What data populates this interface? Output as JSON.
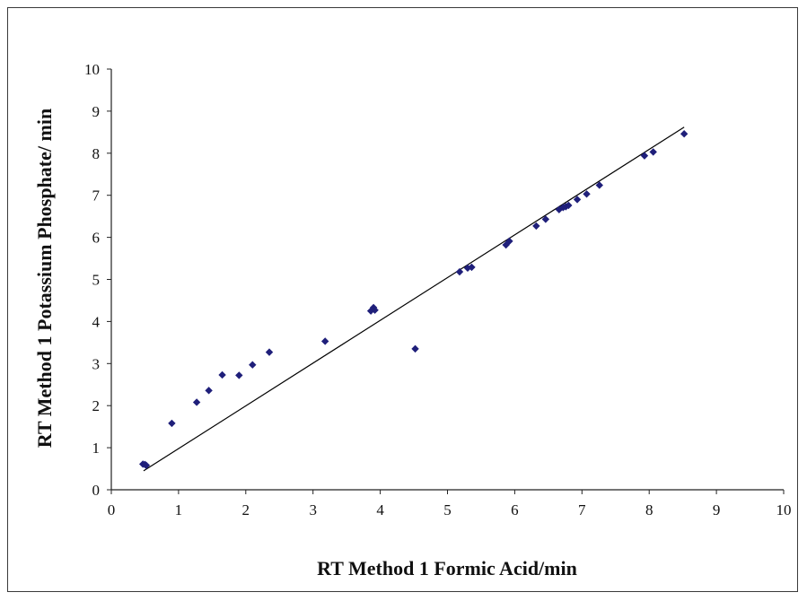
{
  "chart_data": {
    "type": "scatter",
    "xlabel": "RT Method 1 Formic Acid/min",
    "ylabel": "RT Method 1 Potassium Phosphate/ min",
    "xlim": [
      0,
      10
    ],
    "ylim": [
      0,
      10
    ],
    "xticks": [
      "0",
      "1",
      "2",
      "3",
      "4",
      "5",
      "6",
      "7",
      "8",
      "9",
      "10"
    ],
    "yticks": [
      "0",
      "1",
      "2",
      "3",
      "4",
      "5",
      "6",
      "7",
      "8",
      "9",
      "10"
    ],
    "grid": false,
    "legend": "none",
    "marker_color": "#1f1f7a",
    "line_color": "#000000",
    "trendline": {
      "x": [
        0.48,
        8.52
      ],
      "y": [
        0.45,
        8.62
      ]
    },
    "points": [
      {
        "x": 0.47,
        "y": 0.61
      },
      {
        "x": 0.5,
        "y": 0.6
      },
      {
        "x": 0.52,
        "y": 0.58
      },
      {
        "x": 0.9,
        "y": 1.58
      },
      {
        "x": 1.27,
        "y": 2.08
      },
      {
        "x": 1.45,
        "y": 2.36
      },
      {
        "x": 1.65,
        "y": 2.73
      },
      {
        "x": 1.9,
        "y": 2.72
      },
      {
        "x": 2.1,
        "y": 2.97
      },
      {
        "x": 2.35,
        "y": 3.27
      },
      {
        "x": 3.18,
        "y": 3.53
      },
      {
        "x": 3.86,
        "y": 4.25
      },
      {
        "x": 3.9,
        "y": 4.33
      },
      {
        "x": 3.92,
        "y": 4.27
      },
      {
        "x": 4.52,
        "y": 3.35
      },
      {
        "x": 5.18,
        "y": 5.18
      },
      {
        "x": 5.3,
        "y": 5.27
      },
      {
        "x": 5.36,
        "y": 5.29
      },
      {
        "x": 5.87,
        "y": 5.82
      },
      {
        "x": 5.92,
        "y": 5.91
      },
      {
        "x": 6.32,
        "y": 6.27
      },
      {
        "x": 6.46,
        "y": 6.43
      },
      {
        "x": 6.66,
        "y": 6.66
      },
      {
        "x": 6.72,
        "y": 6.71
      },
      {
        "x": 6.76,
        "y": 6.73
      },
      {
        "x": 6.8,
        "y": 6.76
      },
      {
        "x": 6.93,
        "y": 6.9
      },
      {
        "x": 7.07,
        "y": 7.03
      },
      {
        "x": 7.26,
        "y": 7.24
      },
      {
        "x": 7.93,
        "y": 7.94
      },
      {
        "x": 8.06,
        "y": 8.03
      },
      {
        "x": 8.52,
        "y": 8.46
      }
    ]
  }
}
